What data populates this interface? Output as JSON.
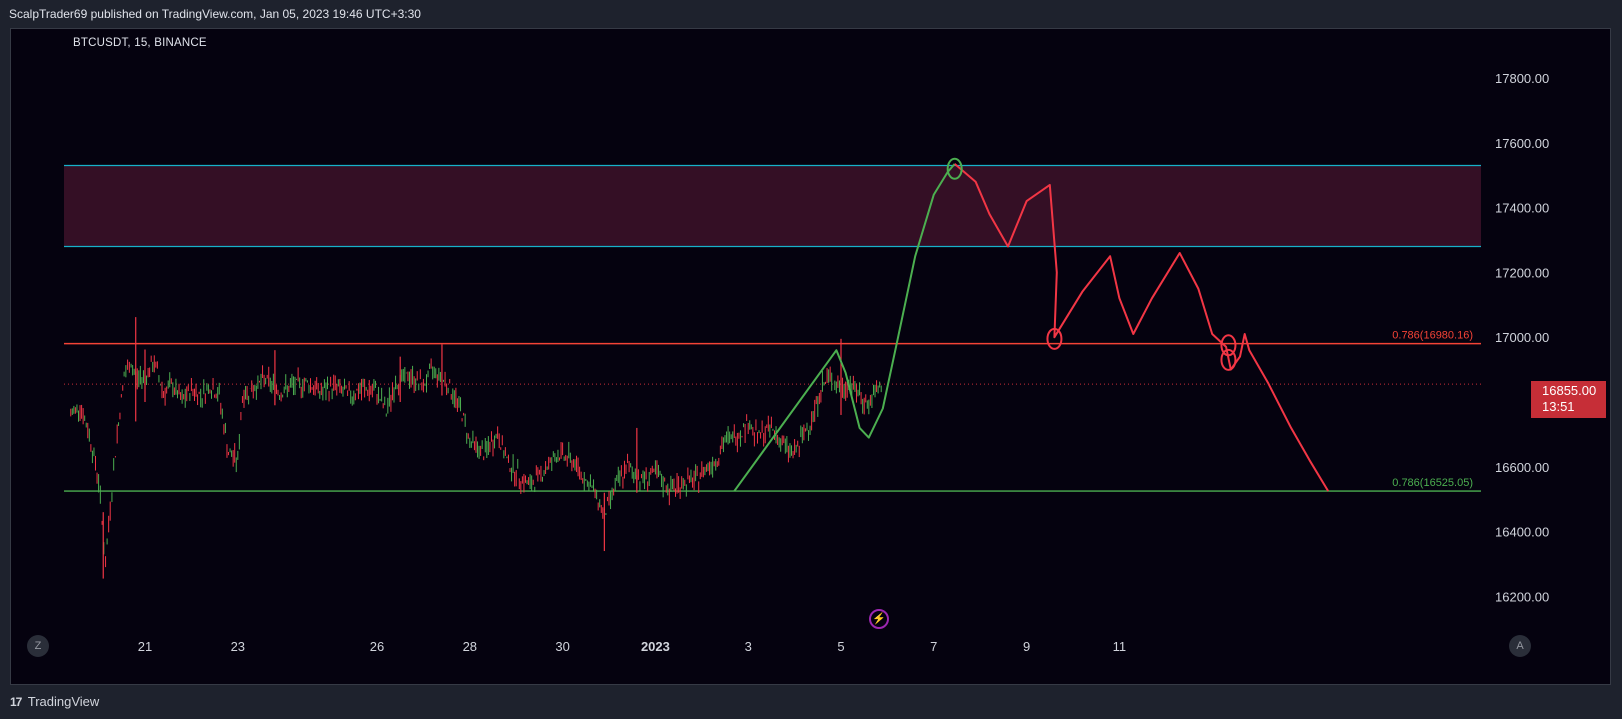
{
  "header": {
    "publish_text": "ScalpTrader69 published on TradingView.com, Jan 05, 2023 19:46 UTC+3:30"
  },
  "symbol_label": "BTCUSDT, 15, BINANCE",
  "footer": {
    "brand": "TradingView",
    "logo_icon": "tradingview-logo-icon"
  },
  "buttons": {
    "left": "Z",
    "right": "A"
  },
  "colors": {
    "background": "#05020f",
    "frame": "#1e222d",
    "zone_fill": "#3a1128",
    "zone_border": "#17b1c9",
    "resistance_line": "#f44336",
    "support_line": "#4caf50",
    "up_candle": "#4caf50",
    "down_candle": "#f23645",
    "projection_green": "#4caf50",
    "projection_red": "#f23645",
    "price_tag": "#c62e37"
  },
  "current_price": {
    "value": "16855.00",
    "countdown": "13:51"
  },
  "chart_data": {
    "type": "line",
    "symbol": "BTCUSDT",
    "interval": "15",
    "exchange": "BINANCE",
    "y_ticks": [
      "17800.00",
      "17600.00",
      "17400.00",
      "17200.00",
      "17000.00",
      "16600.00",
      "16400.00",
      "16200.00"
    ],
    "y_range": [
      16080,
      17890
    ],
    "x_ticks": [
      {
        "label": "21",
        "day": 21,
        "bold": false
      },
      {
        "label": "23",
        "day": 23,
        "bold": false
      },
      {
        "label": "26",
        "day": 26,
        "bold": false
      },
      {
        "label": "28",
        "day": 28,
        "bold": false
      },
      {
        "label": "30",
        "day": 30,
        "bold": false
      },
      {
        "label": "2023",
        "day": 32,
        "bold": true
      },
      {
        "label": "3",
        "day": 34,
        "bold": false
      },
      {
        "label": "5",
        "day": 36,
        "bold": false
      },
      {
        "label": "7",
        "day": 38,
        "bold": false
      },
      {
        "label": "9",
        "day": 40,
        "bold": false
      },
      {
        "label": "11",
        "day": 42,
        "bold": false
      }
    ],
    "zone": {
      "top": 17530,
      "bottom": 17280
    },
    "levels": [
      {
        "label": "0.786(16980.16)",
        "value": 16980.16,
        "color": "#f44336"
      },
      {
        "label": "0.786(16525.05)",
        "value": 16525.05,
        "color": "#4caf50"
      }
    ],
    "last_price": 16855.0,
    "price_path": [
      [
        19.4,
        16760
      ],
      [
        19.6,
        16790
      ],
      [
        19.8,
        16700
      ],
      [
        20.0,
        16560
      ],
      [
        20.15,
        16300
      ],
      [
        20.25,
        16480
      ],
      [
        20.4,
        16700
      ],
      [
        20.55,
        16880
      ],
      [
        20.7,
        16920
      ],
      [
        20.8,
        16870
      ],
      [
        21.0,
        16880
      ],
      [
        21.2,
        16920
      ],
      [
        21.4,
        16830
      ],
      [
        21.6,
        16850
      ],
      [
        21.8,
        16800
      ],
      [
        22.0,
        16840
      ],
      [
        22.2,
        16820
      ],
      [
        22.4,
        16850
      ],
      [
        22.6,
        16820
      ],
      [
        22.8,
        16640
      ],
      [
        23.0,
        16620
      ],
      [
        23.1,
        16820
      ],
      [
        23.3,
        16840
      ],
      [
        23.6,
        16870
      ],
      [
        23.9,
        16830
      ],
      [
        24.2,
        16850
      ],
      [
        24.5,
        16860
      ],
      [
        24.8,
        16830
      ],
      [
        25.1,
        16850
      ],
      [
        25.4,
        16820
      ],
      [
        25.7,
        16840
      ],
      [
        26.0,
        16830
      ],
      [
        26.2,
        16770
      ],
      [
        26.4,
        16860
      ],
      [
        26.7,
        16880
      ],
      [
        27.0,
        16850
      ],
      [
        27.2,
        16900
      ],
      [
        27.5,
        16860
      ],
      [
        27.8,
        16780
      ],
      [
        28.0,
        16680
      ],
      [
        28.3,
        16640
      ],
      [
        28.6,
        16700
      ],
      [
        28.8,
        16620
      ],
      [
        29.0,
        16580
      ],
      [
        29.3,
        16540
      ],
      [
        29.6,
        16590
      ],
      [
        29.9,
        16640
      ],
      [
        30.2,
        16620
      ],
      [
        30.5,
        16560
      ],
      [
        30.7,
        16520
      ],
      [
        30.9,
        16450
      ],
      [
        31.1,
        16530
      ],
      [
        31.4,
        16600
      ],
      [
        31.7,
        16560
      ],
      [
        32.0,
        16580
      ],
      [
        32.3,
        16530
      ],
      [
        32.6,
        16550
      ],
      [
        32.9,
        16560
      ],
      [
        33.1,
        16600
      ],
      [
        33.3,
        16620
      ],
      [
        33.5,
        16680
      ],
      [
        33.8,
        16700
      ],
      [
        34.0,
        16740
      ],
      [
        34.2,
        16690
      ],
      [
        34.5,
        16720
      ],
      [
        34.8,
        16660
      ],
      [
        35.0,
        16640
      ],
      [
        35.2,
        16700
      ],
      [
        35.4,
        16760
      ],
      [
        35.6,
        16850
      ],
      [
        35.8,
        16880
      ],
      [
        36.0,
        16830
      ],
      [
        36.2,
        16860
      ],
      [
        36.4,
        16820
      ],
      [
        36.6,
        16790
      ],
      [
        36.8,
        16840
      ],
      [
        36.9,
        16855
      ]
    ],
    "spikes": [
      [
        20.1,
        16255,
        16460
      ],
      [
        20.8,
        16740,
        17062
      ],
      [
        21.0,
        16800,
        16962
      ],
      [
        23.8,
        16790,
        16960
      ],
      [
        26.5,
        16800,
        16940
      ],
      [
        27.4,
        16820,
        16978
      ],
      [
        30.9,
        16340,
        16520
      ],
      [
        31.6,
        16520,
        16720
      ],
      [
        36.0,
        16760,
        16995
      ]
    ],
    "projection_green": [
      [
        33.7,
        16525
      ],
      [
        35.9,
        16960
      ],
      [
        36.1,
        16890
      ],
      [
        36.4,
        16720
      ],
      [
        36.6,
        16690
      ],
      [
        36.9,
        16780
      ],
      [
        37.2,
        16980
      ],
      [
        37.6,
        17250
      ],
      [
        38.0,
        17440
      ],
      [
        38.3,
        17510
      ],
      [
        38.45,
        17535
      ]
    ],
    "projection_red": [
      [
        38.45,
        17535
      ],
      [
        38.9,
        17480
      ],
      [
        39.2,
        17380
      ],
      [
        39.6,
        17280
      ],
      [
        40.0,
        17420
      ],
      [
        40.5,
        17470
      ],
      [
        40.65,
        17200
      ],
      [
        40.6,
        17000
      ],
      [
        41.2,
        17140
      ],
      [
        41.8,
        17250
      ],
      [
        42.0,
        17120
      ],
      [
        42.3,
        17010
      ],
      [
        42.7,
        17120
      ],
      [
        43.3,
        17260
      ],
      [
        43.7,
        17150
      ],
      [
        44.0,
        17010
      ],
      [
        44.3,
        16970
      ],
      [
        44.4,
        16900
      ],
      [
        44.6,
        16940
      ],
      [
        44.7,
        17010
      ],
      [
        44.8,
        16960
      ],
      [
        45.2,
        16860
      ],
      [
        45.7,
        16720
      ],
      [
        46.1,
        16620
      ],
      [
        46.5,
        16525
      ]
    ],
    "circles": [
      [
        38.45,
        17520,
        "green"
      ],
      [
        40.6,
        16995,
        "red"
      ],
      [
        44.35,
        16975,
        "red"
      ],
      [
        44.35,
        16930,
        "red"
      ]
    ]
  }
}
